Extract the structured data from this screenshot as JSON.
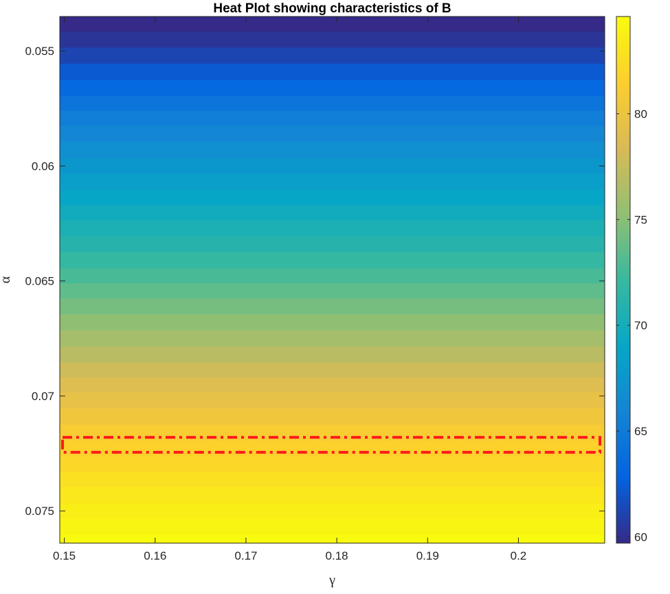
{
  "chart_data": {
    "type": "heatmap",
    "title": "Heat Plot showing characteristics of B",
    "xlabel": "γ",
    "ylabel": "α",
    "x_range": [
      0.1495,
      0.2095
    ],
    "y_range": [
      0.0535,
      0.0764
    ],
    "y_reversed": true,
    "x_ticks": [
      0.15,
      0.16,
      0.17,
      0.18,
      0.19,
      0.2
    ],
    "x_tick_labels": [
      "0.15",
      "0.16",
      "0.17",
      "0.18",
      "0.19",
      "0.2"
    ],
    "y_ticks": [
      0.055,
      0.06,
      0.065,
      0.07,
      0.075
    ],
    "y_tick_labels": [
      "0.055",
      "0.06",
      "0.065",
      "0.07",
      "0.075"
    ],
    "colormap": "parula",
    "colorbar": {
      "range": [
        59.7,
        84.6
      ],
      "ticks": [
        60,
        65,
        70,
        75,
        80
      ],
      "tick_labels": [
        "60",
        "65",
        "70",
        "75",
        "80"
      ]
    },
    "rows": [
      {
        "alpha": 0.0538,
        "value": 59.7
      },
      {
        "alpha": 0.0545,
        "value": 60.3
      },
      {
        "alpha": 0.0552,
        "value": 61.2
      },
      {
        "alpha": 0.0559,
        "value": 62.3
      },
      {
        "alpha": 0.0566,
        "value": 63.4
      },
      {
        "alpha": 0.0573,
        "value": 64.4
      },
      {
        "alpha": 0.0579,
        "value": 65.3
      },
      {
        "alpha": 0.0586,
        "value": 66.1
      },
      {
        "alpha": 0.0593,
        "value": 66.9
      },
      {
        "alpha": 0.06,
        "value": 67.6
      },
      {
        "alpha": 0.0607,
        "value": 68.3
      },
      {
        "alpha": 0.0614,
        "value": 69.0
      },
      {
        "alpha": 0.062,
        "value": 69.7
      },
      {
        "alpha": 0.0627,
        "value": 70.4
      },
      {
        "alpha": 0.0634,
        "value": 71.1
      },
      {
        "alpha": 0.0641,
        "value": 71.9
      },
      {
        "alpha": 0.0648,
        "value": 72.7
      },
      {
        "alpha": 0.0654,
        "value": 73.5
      },
      {
        "alpha": 0.0661,
        "value": 74.3
      },
      {
        "alpha": 0.0668,
        "value": 75.2
      },
      {
        "alpha": 0.0675,
        "value": 76.1
      },
      {
        "alpha": 0.0682,
        "value": 77.0
      },
      {
        "alpha": 0.0689,
        "value": 77.9
      },
      {
        "alpha": 0.0695,
        "value": 78.8
      },
      {
        "alpha": 0.0702,
        "value": 79.6
      },
      {
        "alpha": 0.0709,
        "value": 80.4
      },
      {
        "alpha": 0.0716,
        "value": 81.1
      },
      {
        "alpha": 0.0723,
        "value": 81.7
      },
      {
        "alpha": 0.073,
        "value": 82.2
      },
      {
        "alpha": 0.0736,
        "value": 82.7
      },
      {
        "alpha": 0.0743,
        "value": 83.2
      },
      {
        "alpha": 0.075,
        "value": 83.7
      },
      {
        "alpha": 0.0757,
        "value": 84.2
      },
      {
        "alpha": 0.0764,
        "value": 84.6
      }
    ],
    "annotation": {
      "type": "highlight-box",
      "style": "dash-dot",
      "color": "#FF1A1A",
      "x_range": [
        0.1495,
        0.2095
      ],
      "y_range": [
        0.0718,
        0.07245
      ]
    }
  }
}
